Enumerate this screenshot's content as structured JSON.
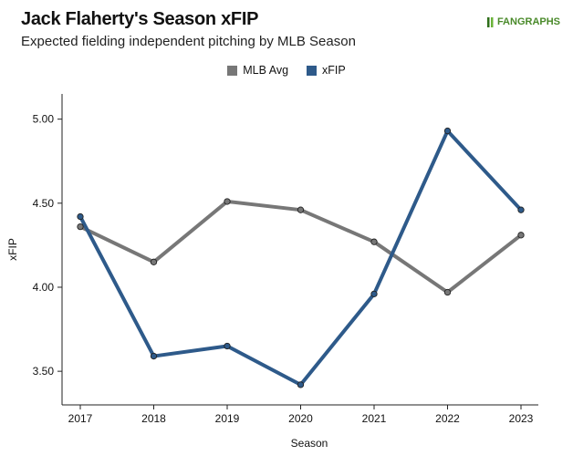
{
  "header": {
    "title": "Jack Flaherty's Season xFIP",
    "subtitle": "Expected fielding independent pitching by MLB Season",
    "logo_text": "FANGRAPHS"
  },
  "colors": {
    "mlb_avg": "#777777",
    "xfip": "#2e5a8a"
  },
  "chart_data": {
    "type": "line",
    "title": "Jack Flaherty's Season xFIP",
    "subtitle": "Expected fielding independent pitching by MLB Season",
    "xlabel": "Season",
    "ylabel": "xFIP",
    "categories": [
      "2017",
      "2018",
      "2019",
      "2020",
      "2021",
      "2022",
      "2023"
    ],
    "ylim": [
      3.3,
      5.15
    ],
    "yticks": [
      "3.50",
      "4.00",
      "4.50",
      "5.00"
    ],
    "ytick_values": [
      3.5,
      4.0,
      4.5,
      5.0
    ],
    "grid": false,
    "legend_position": "top-center",
    "series": [
      {
        "name": "MLB Avg",
        "values": [
          4.36,
          4.15,
          4.51,
          4.46,
          4.27,
          3.97,
          4.31
        ]
      },
      {
        "name": "xFIP",
        "values": [
          4.42,
          3.59,
          3.65,
          3.42,
          3.96,
          4.93,
          4.46
        ]
      }
    ]
  }
}
